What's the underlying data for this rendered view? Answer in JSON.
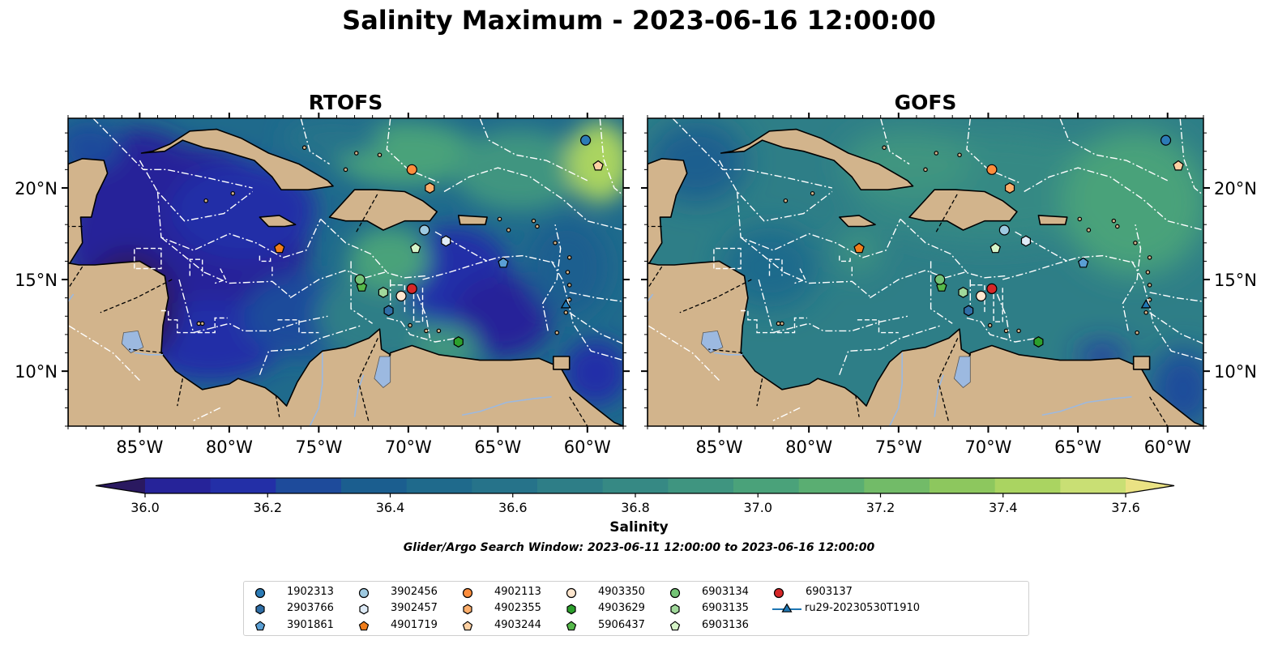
{
  "title": "Salinity Maximum - 2023-06-16 12:00:00",
  "panels": [
    {
      "title": "RTOFS",
      "model": "rtofs"
    },
    {
      "title": "GOFS",
      "model": "gofs"
    }
  ],
  "map": {
    "lon_range": [
      -89,
      -58
    ],
    "lat_range": [
      7,
      23.8
    ],
    "lon_ticks": [
      -85,
      -80,
      -75,
      -70,
      -65,
      -60
    ],
    "lon_tick_labels": [
      "85°W",
      "80°W",
      "75°W",
      "70°W",
      "65°W",
      "60°W"
    ],
    "lat_ticks": [
      10,
      15,
      20
    ],
    "lat_tick_labels": [
      "10°N",
      "15°N",
      "20°N"
    ],
    "land_color": "#d2b48c",
    "lake_color": "#9cb9e0",
    "boundary_color": "#ffffff"
  },
  "colorbar": {
    "label": "Salinity",
    "vmin": 36.0,
    "vmax": 37.6,
    "step": 0.1,
    "tick_values": [
      36.0,
      36.2,
      36.4,
      36.6,
      36.8,
      37.0,
      37.2,
      37.4,
      37.6
    ],
    "tick_labels": [
      "36.0",
      "36.2",
      "36.4",
      "36.6",
      "36.8",
      "37.0",
      "37.2",
      "37.4",
      "37.6"
    ],
    "colors": [
      "#2a1960",
      "#262399",
      "#232fa7",
      "#1e4b9b",
      "#1b5e8f",
      "#1f6a8c",
      "#26738a",
      "#2e7e87",
      "#368984",
      "#3f9580",
      "#4aa27a",
      "#5aae72",
      "#72bb68",
      "#8dc75e",
      "#aad461",
      "#c9df74",
      "#eae284"
    ],
    "extend": "both"
  },
  "search_window": "Glider/Argo Search Window: 2023-06-11 12:00:00 to 2023-06-16 12:00:00",
  "platforms": [
    {
      "id": "1902313",
      "marker": "circle",
      "color": "#2c7bb6",
      "lon": -60.1,
      "lat": 22.6
    },
    {
      "id": "2903766",
      "marker": "hexagon",
      "color": "#2f6ea6",
      "lon": -71.1,
      "lat": 13.3
    },
    {
      "id": "3901861",
      "marker": "pentagon",
      "color": "#5a9fd4",
      "lon": -64.7,
      "lat": 15.9
    },
    {
      "id": "3902456",
      "marker": "circle",
      "color": "#9ecae1",
      "lon": -69.1,
      "lat": 17.7
    },
    {
      "id": "3902457",
      "marker": "hexagon",
      "color": "#deebf7",
      "lon": -67.9,
      "lat": 17.1
    },
    {
      "id": "4901719",
      "marker": "pentagon",
      "color": "#f07d1a",
      "lon": -77.2,
      "lat": 16.7
    },
    {
      "id": "4902113",
      "marker": "circle",
      "color": "#fd8d3c",
      "lon": -69.8,
      "lat": 21.0
    },
    {
      "id": "4902355",
      "marker": "hexagon",
      "color": "#fdae6b",
      "lon": -68.8,
      "lat": 20.0
    },
    {
      "id": "4903244",
      "marker": "pentagon",
      "color": "#fdd0a2",
      "lon": -59.4,
      "lat": 21.2
    },
    {
      "id": "4903350",
      "marker": "circle",
      "color": "#fee6ce",
      "lon": -70.4,
      "lat": 14.1
    },
    {
      "id": "4903629",
      "marker": "hexagon",
      "color": "#2ca02c",
      "lon": -67.2,
      "lat": 11.6
    },
    {
      "id": "5906437",
      "marker": "pentagon",
      "color": "#55b84a",
      "lon": -72.6,
      "lat": 14.6
    },
    {
      "id": "6903134",
      "marker": "circle",
      "color": "#74c476",
      "lon": -72.7,
      "lat": 15.0
    },
    {
      "id": "6903135",
      "marker": "hexagon",
      "color": "#a1d99b",
      "lon": -71.4,
      "lat": 14.3
    },
    {
      "id": "6903136",
      "marker": "pentagon",
      "color": "#d6f5c8",
      "lon": -69.6,
      "lat": 16.7
    },
    {
      "id": "6903137",
      "marker": "circle",
      "color": "#d62728",
      "lon": -69.8,
      "lat": 14.5
    },
    {
      "id": "ru29-20230530T1910",
      "marker": "triangle",
      "color": "#1f77b4",
      "lon": -61.2,
      "lat": 13.6
    }
  ]
}
